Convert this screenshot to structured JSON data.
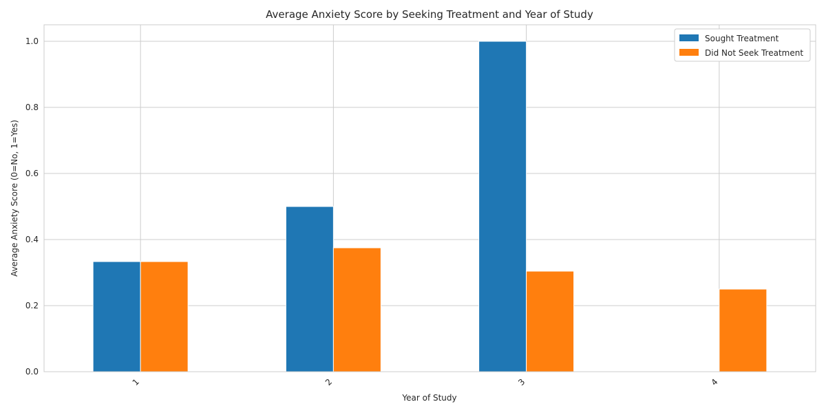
{
  "chart_data": {
    "type": "bar",
    "title": "Average Anxiety Score by Seeking Treatment and Year of Study",
    "xlabel": "Year of Study",
    "ylabel": "Average Anxiety Score (0=No, 1=Yes)",
    "categories": [
      "1",
      "2",
      "3",
      "4"
    ],
    "series": [
      {
        "name": "Sought Treatment",
        "color": "#1f77b4",
        "values": [
          0.3333,
          0.5,
          1.0,
          0
        ]
      },
      {
        "name": "Did Not Seek Treatment",
        "color": "#ff7f0e",
        "values": [
          0.3333,
          0.375,
          0.3043,
          0.25
        ]
      }
    ],
    "ylim": [
      0,
      1.05
    ],
    "yticks": [
      0.0,
      0.2,
      0.4,
      0.6,
      0.8,
      1.0
    ],
    "ytick_labels": [
      "0.0",
      "0.2",
      "0.4",
      "0.6",
      "0.8",
      "1.0"
    ],
    "grid": true,
    "legend_position": "top-right"
  }
}
